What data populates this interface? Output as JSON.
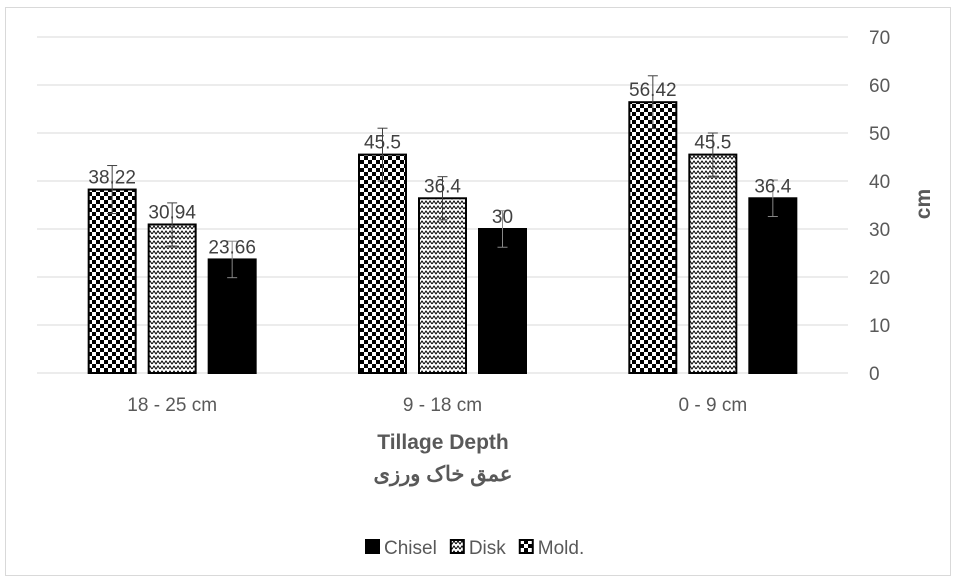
{
  "chart_data": {
    "type": "bar",
    "categories": [
      "18 - 25 cm",
      "9 - 18 cm",
      "0 - 9 cm"
    ],
    "series": [
      {
        "name": "Mold.",
        "values": [
          38.22,
          45.5,
          56.42
        ],
        "error": [
          5.0,
          5.5,
          5.5
        ],
        "labels": [
          "38.22",
          "45.5",
          "56.42"
        ],
        "pattern": "checker"
      },
      {
        "name": "Disk",
        "values": [
          30.94,
          36.4,
          45.5
        ],
        "error": [
          4.5,
          4.5,
          4.5
        ],
        "labels": [
          "30.94",
          "36.4",
          "45.5"
        ],
        "pattern": "zigzag"
      },
      {
        "name": "Chisel",
        "values": [
          23.66,
          30,
          36.4
        ],
        "error": [
          3.8,
          3.8,
          3.8
        ],
        "labels": [
          "23.66",
          "30",
          "36.4"
        ],
        "pattern": "solid"
      }
    ],
    "legend_order": [
      "Chisel",
      "Disk",
      "Mold."
    ],
    "xlabel": "Tillage Depth",
    "xlabel_secondary": "عمق خاک ورزی",
    "ylabel": "cm",
    "ylim": [
      0,
      70
    ],
    "yticks": [
      "0",
      "10",
      "20",
      "30",
      "40",
      "50",
      "60",
      "70"
    ],
    "y_axis_side": "right",
    "grid": true,
    "legend_position": "bottom",
    "colors": {
      "bar_fill": "#000000",
      "grid": "#d9d9d9",
      "text": "#595959"
    }
  }
}
